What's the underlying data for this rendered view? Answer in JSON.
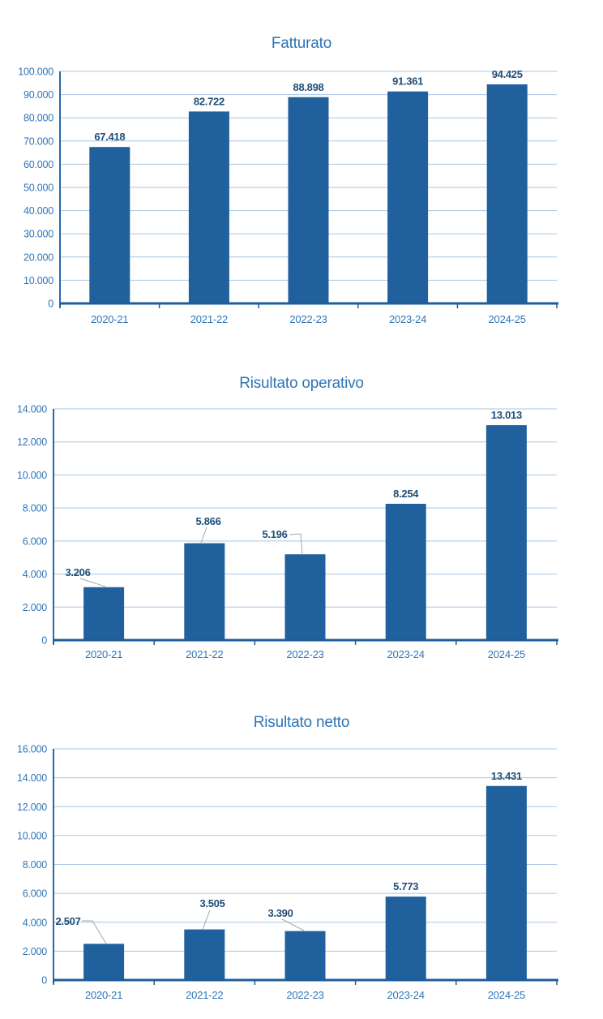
{
  "page": {
    "background": "#FFFFFF"
  },
  "colors": {
    "bar": "#20609C",
    "gridline": "#A8C6E4",
    "axis_line": "#2668A8",
    "baseline": "#1F5D99",
    "leader": "#A6A6A6",
    "title": "#2E75B6",
    "tick_label": "#2E75B6",
    "data_label": "#1F4E79"
  },
  "chart_data": [
    {
      "type": "bar",
      "title": "Fatturato",
      "categories": [
        "2020-21",
        "2021-22",
        "2022-23",
        "2023-24",
        "2024-25"
      ],
      "values": [
        67418,
        82722,
        88898,
        91361,
        94425
      ],
      "data_labels": [
        "67.418",
        "82.722",
        "88.898",
        "91.361",
        "94.425"
      ],
      "xlabel": "",
      "ylabel": "",
      "ylim": [
        0,
        100000
      ],
      "y_step": 10000,
      "y_tick_labels": [
        "0",
        "10.000",
        "20.000",
        "30.000",
        "40.000",
        "50.000",
        "60.000",
        "70.000",
        "80.000",
        "90.000",
        "100.000"
      ],
      "grid": true,
      "legend": false,
      "callout_indices": []
    },
    {
      "type": "bar",
      "title": "Risultato operativo",
      "categories": [
        "2020-21",
        "2021-22",
        "2022-23",
        "2023-24",
        "2024-25"
      ],
      "values": [
        3206,
        5866,
        5196,
        8254,
        13013
      ],
      "data_labels": [
        "3.206",
        "5.866",
        "5.196",
        "8.254",
        "13.013"
      ],
      "xlabel": "",
      "ylabel": "",
      "ylim": [
        0,
        14000
      ],
      "y_step": 2000,
      "y_tick_labels": [
        "0",
        "2.000",
        "4.000",
        "6.000",
        "8.000",
        "10.000",
        "12.000",
        "14.000"
      ],
      "grid": true,
      "legend": false,
      "callout_indices": [
        0,
        1,
        2
      ]
    },
    {
      "type": "bar",
      "title": "Risultato netto",
      "categories": [
        "2020-21",
        "2021-22",
        "2022-23",
        "2023-24",
        "2024-25"
      ],
      "values": [
        2507,
        3505,
        3390,
        5773,
        13431
      ],
      "data_labels": [
        "2.507",
        "3.505",
        "3.390",
        "5.773",
        "13.431"
      ],
      "xlabel": "",
      "ylabel": "",
      "ylim": [
        0,
        16000
      ],
      "y_step": 2000,
      "y_tick_labels": [
        "0",
        "2.000",
        "4.000",
        "6.000",
        "8.000",
        "10.000",
        "12.000",
        "14.000",
        "16.000"
      ],
      "grid": true,
      "legend": false,
      "callout_indices": [
        0,
        1,
        2
      ]
    }
  ]
}
